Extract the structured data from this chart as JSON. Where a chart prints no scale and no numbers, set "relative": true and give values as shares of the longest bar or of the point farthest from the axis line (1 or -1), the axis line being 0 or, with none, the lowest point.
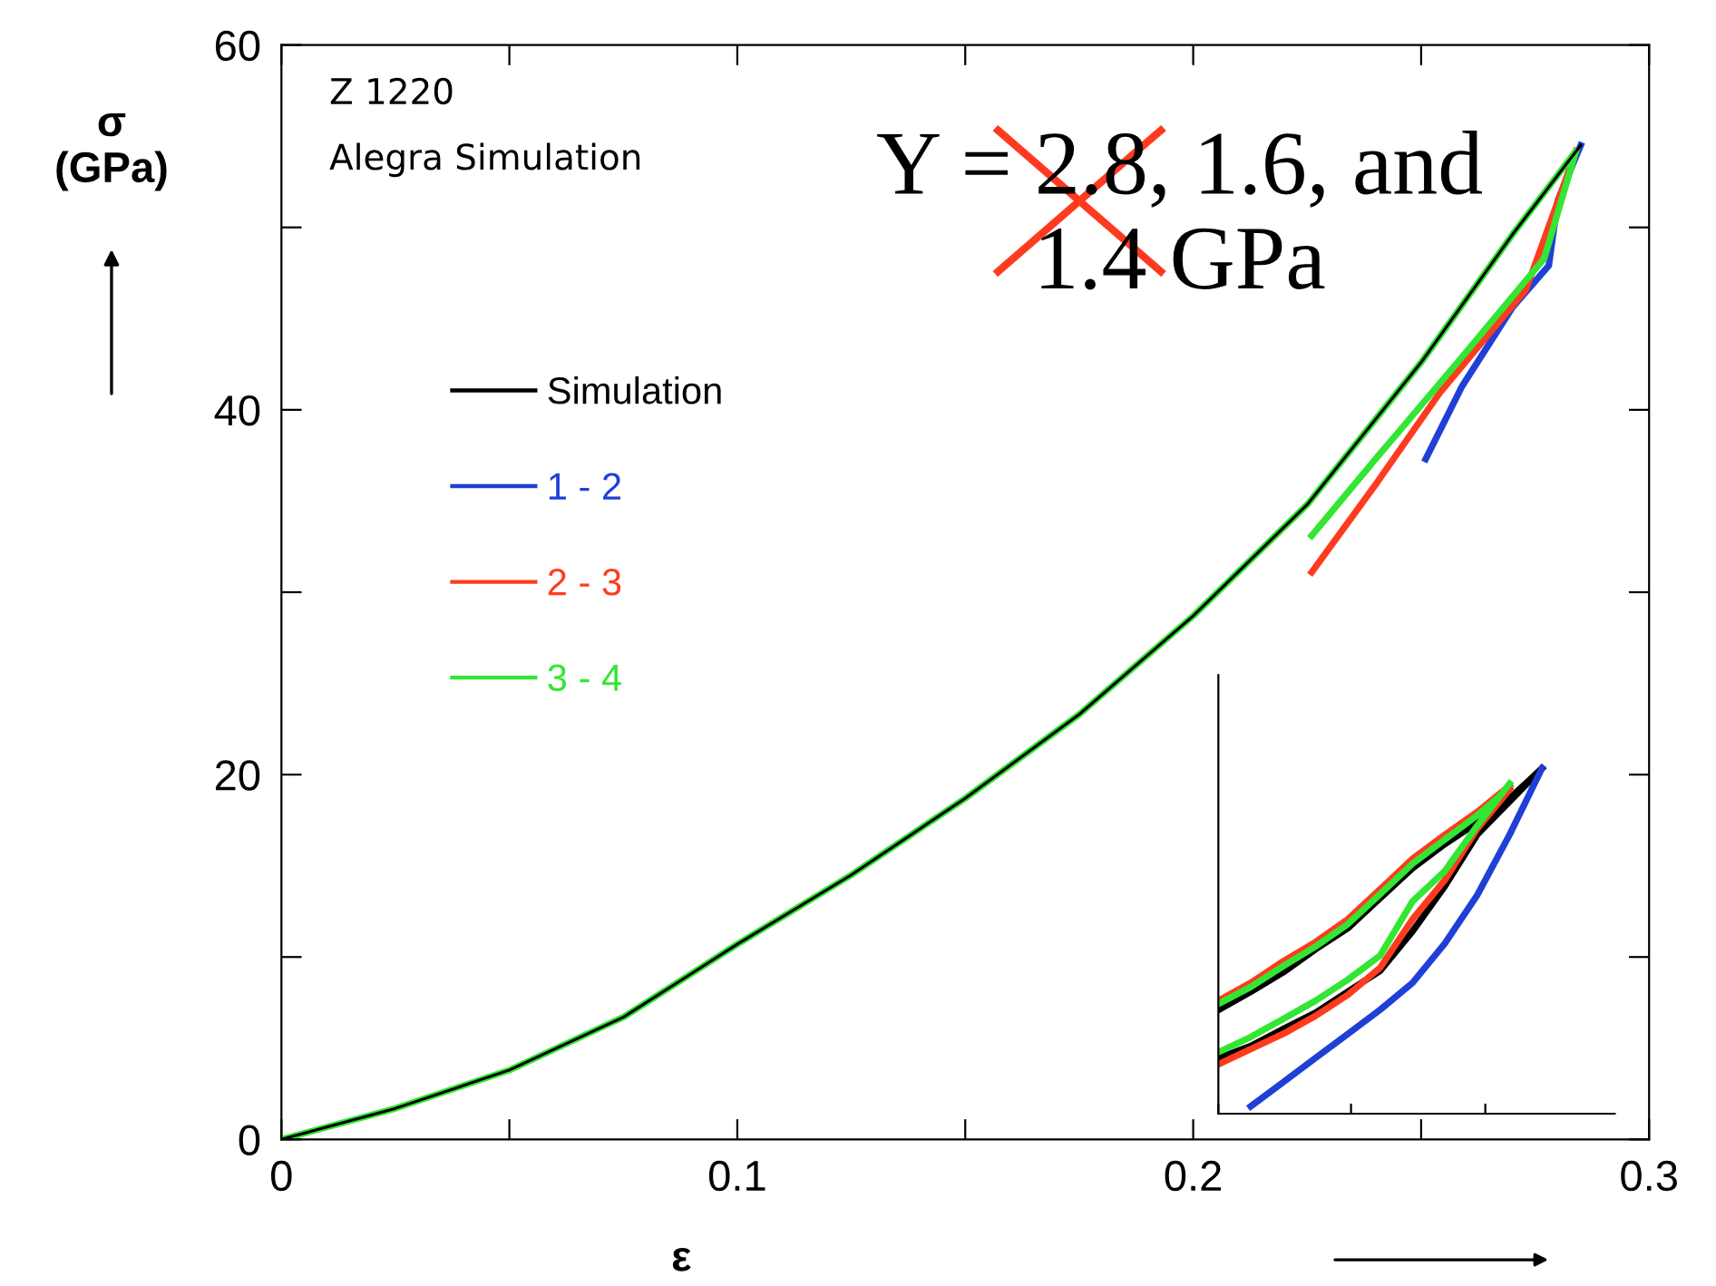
{
  "chart_data": [
    {
      "type": "line",
      "xlim": [
        0,
        0.3
      ],
      "ylim": [
        0,
        60
      ],
      "xticks": [
        0,
        {
          "value": 0.05,
          "label": null
        },
        0.1,
        {
          "value": 0.15,
          "label": null
        },
        0.2,
        {
          "value": 0.25,
          "label": null
        },
        0.3
      ],
      "yticks": [
        0,
        {
          "value": 10,
          "label": null
        },
        20,
        {
          "value": 30,
          "label": null
        },
        40,
        {
          "value": 50,
          "label": null
        },
        60
      ],
      "xlabel": "ε",
      "ylabel": "σ\n(GPa)",
      "grid": false,
      "legend": "left",
      "marker": "none",
      "line_style": "solid",
      "annotations": [
        "Z 1220",
        "Alegra Simulation",
        "Y = 2.8, 1.6, and 1.4 GPa"
      ],
      "series": [
        {
          "name": "Simulation",
          "color": "#000000",
          "x": [
            0,
            0.025,
            0.05,
            0.075,
            0.1,
            0.125,
            0.15,
            0.175,
            0.2,
            0.225,
            0.25,
            0.27,
            0.285
          ],
          "values": [
            0,
            1.7,
            3.8,
            6.7,
            10.7,
            14.5,
            18.7,
            23.3,
            28.7,
            34.8,
            42.6,
            49.6,
            54.5
          ]
        },
        {
          "name": "1 - 2",
          "color": "#1f3fd6",
          "x": [
            0.285,
            0.28,
            0.278,
            0.27,
            0.259,
            0.251
          ],
          "values": [
            54.5,
            51.5,
            47.9,
            45.6,
            41.3,
            37.3
          ]
        },
        {
          "name": "2 - 3",
          "color": "#ff3b1f",
          "x": [
            0.284,
            0.273,
            0.254,
            0.24,
            0.226
          ],
          "values": [
            54.2,
            46.6,
            40.9,
            35.9,
            31.1
          ]
        },
        {
          "name": "3 - 4",
          "color": "#33e633",
          "x": [
            0,
            0.025,
            0.05,
            0.075,
            0.1,
            0.125,
            0.15,
            0.175,
            0.2,
            0.225,
            0.25,
            0.27,
            0.284,
            0.277,
            0.259,
            0.24,
            0.226
          ],
          "values": [
            0,
            1.7,
            3.8,
            6.7,
            10.7,
            14.5,
            18.7,
            23.3,
            28.7,
            34.8,
            42.6,
            49.6,
            54.2,
            48.3,
            42.9,
            37.3,
            33.1
          ]
        }
      ]
    },
    {
      "type": "line",
      "relative": true,
      "tick_labels": false,
      "grid": false,
      "marker": "none",
      "line_style": "solid",
      "categories": [
        null,
        null,
        null,
        null,
        null,
        null,
        null,
        null,
        null,
        null,
        null
      ],
      "series": [
        {
          "color": "#000000",
          "values": [
            0.3,
            0.353,
            0.409,
            0.476,
            0.537,
            0.624,
            0.711,
            0.781,
            0.843,
            0.913,
            1.0
          ]
        },
        {
          "color": "#ff3b1f",
          "values": [
            0.327,
            0.379,
            0.441,
            0.497,
            0.563,
            0.65,
            0.738,
            0.808,
            0.874,
            0.95,
            null
          ]
        },
        {
          "color": "#33e633",
          "values": [
            0.318,
            0.367,
            0.427,
            0.484,
            0.549,
            0.636,
            0.724,
            0.794,
            0.864,
            0.944,
            null
          ]
        },
        {
          "color": "#000000",
          "values": [
            0.161,
            0.196,
            0.245,
            0.292,
            0.353,
            0.414,
            0.528,
            0.659,
            0.808,
            0.904,
            1.0
          ]
        },
        {
          "color": "#ff3b1f",
          "values": [
            0.143,
            0.187,
            0.231,
            0.283,
            0.344,
            0.423,
            0.563,
            0.677,
            0.825,
            0.939,
            null
          ]
        },
        {
          "color": "#33e633",
          "values": [
            0.178,
            0.222,
            0.274,
            0.327,
            0.388,
            0.458,
            0.615,
            0.703,
            0.834,
            0.956,
            null
          ]
        },
        {
          "color": "#1f3fd6",
          "values": [
            null,
            0.021,
            0.091,
            0.161,
            0.231,
            0.301,
            0.379,
            0.493,
            0.633,
            0.808,
            1.0
          ]
        }
      ]
    }
  ]
}
